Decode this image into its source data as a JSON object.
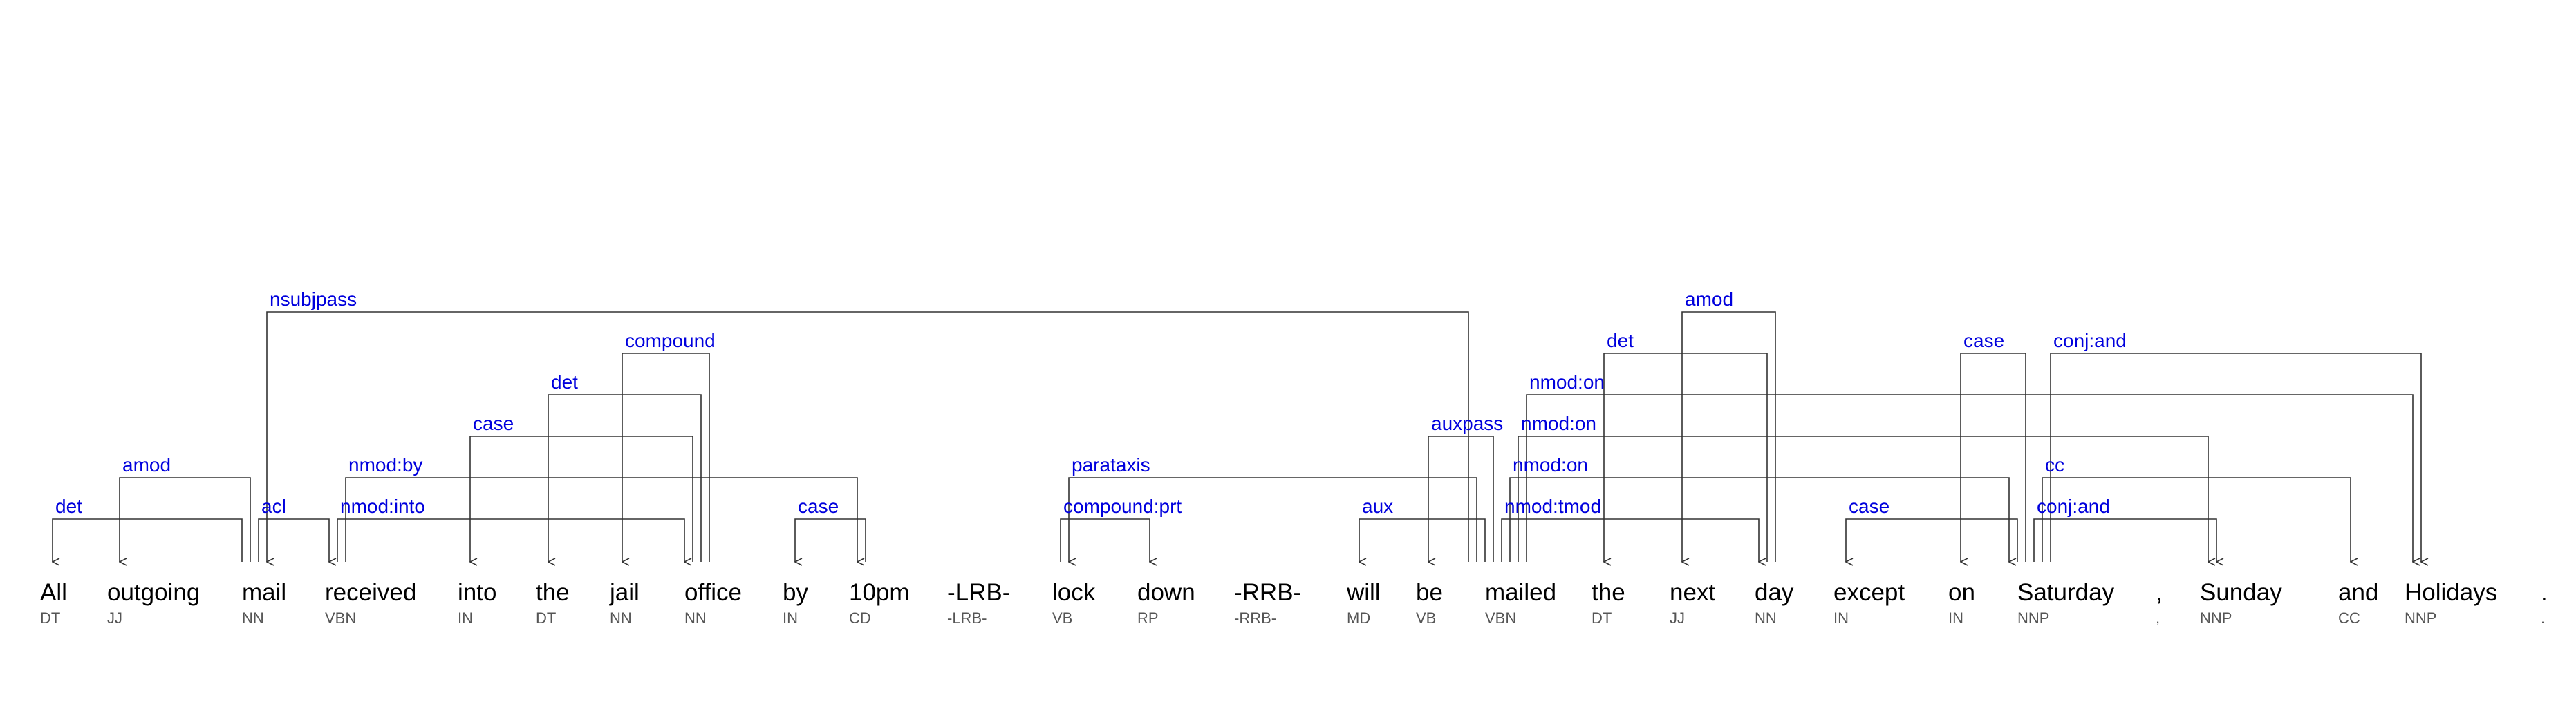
{
  "colors": {
    "label": "#0000dd",
    "line": "#333333",
    "token": "#000000",
    "tag": "#555555"
  },
  "tokens": [
    {
      "word": "All",
      "tag": "DT"
    },
    {
      "word": "outgoing",
      "tag": "JJ"
    },
    {
      "word": "mail",
      "tag": "NN"
    },
    {
      "word": "received",
      "tag": "VBN"
    },
    {
      "word": "into",
      "tag": "IN"
    },
    {
      "word": "the",
      "tag": "DT"
    },
    {
      "word": "jail",
      "tag": "NN"
    },
    {
      "word": "office",
      "tag": "NN"
    },
    {
      "word": "by",
      "tag": "IN"
    },
    {
      "word": "10pm",
      "tag": "CD"
    },
    {
      "word": "-LRB-",
      "tag": "-LRB-"
    },
    {
      "word": "lock",
      "tag": "VB"
    },
    {
      "word": "down",
      "tag": "RP"
    },
    {
      "word": "-RRB-",
      "tag": "-RRB-"
    },
    {
      "word": "will",
      "tag": "MD"
    },
    {
      "word": "be",
      "tag": "VB"
    },
    {
      "word": "mailed",
      "tag": "VBN"
    },
    {
      "word": "the",
      "tag": "DT"
    },
    {
      "word": "next",
      "tag": "JJ"
    },
    {
      "word": "day",
      "tag": "NN"
    },
    {
      "word": "except",
      "tag": "IN"
    },
    {
      "word": "on",
      "tag": "IN"
    },
    {
      "word": "Saturday",
      "tag": "NNP"
    },
    {
      "word": ",",
      "tag": ","
    },
    {
      "word": "Sunday",
      "tag": "NNP"
    },
    {
      "word": "and",
      "tag": "CC"
    },
    {
      "word": "Holidays",
      "tag": "NNP"
    },
    {
      "word": ".",
      "tag": "."
    }
  ],
  "arcs": [
    {
      "label": "det",
      "head": 2,
      "dep": 0,
      "level": 1
    },
    {
      "label": "amod",
      "head": 2,
      "dep": 1,
      "level": 2
    },
    {
      "label": "acl",
      "head": 2,
      "dep": 3,
      "level": 1
    },
    {
      "label": "nsubjpass",
      "head": 16,
      "dep": 2,
      "level": 6
    },
    {
      "label": "nmod:into",
      "head": 3,
      "dep": 7,
      "level": 1
    },
    {
      "label": "nmod:by",
      "head": 3,
      "dep": 9,
      "level": 2
    },
    {
      "label": "case",
      "head": 7,
      "dep": 4,
      "level": 3
    },
    {
      "label": "det",
      "head": 7,
      "dep": 5,
      "level": 4
    },
    {
      "label": "compound",
      "head": 7,
      "dep": 6,
      "level": 5
    },
    {
      "label": "case",
      "head": 9,
      "dep": 8,
      "level": 1
    },
    {
      "label": "parataxis",
      "head": 16,
      "dep": 11,
      "level": 2
    },
    {
      "label": "compound:prt",
      "head": 11,
      "dep": 12,
      "level": 1
    },
    {
      "label": "aux",
      "head": 16,
      "dep": 14,
      "level": 1
    },
    {
      "label": "auxpass",
      "head": 16,
      "dep": 15,
      "level": 3
    },
    {
      "label": "nmod:tmod",
      "head": 16,
      "dep": 19,
      "level": 1
    },
    {
      "label": "nmod:on",
      "head": 16,
      "dep": 22,
      "level": 2
    },
    {
      "label": "nmod:on",
      "head": 16,
      "dep": 24,
      "level": 3
    },
    {
      "label": "nmod:on",
      "head": 16,
      "dep": 26,
      "level": 4
    },
    {
      "label": "det",
      "head": 19,
      "dep": 17,
      "level": 5
    },
    {
      "label": "amod",
      "head": 19,
      "dep": 18,
      "level": 6
    },
    {
      "label": "case",
      "head": 22,
      "dep": 20,
      "level": 1
    },
    {
      "label": "case",
      "head": 22,
      "dep": 21,
      "level": 5
    },
    {
      "label": "conj:and",
      "head": 22,
      "dep": 24,
      "level": 1
    },
    {
      "label": "cc",
      "head": 22,
      "dep": 25,
      "level": 2
    },
    {
      "label": "conj:and",
      "head": 22,
      "dep": 26,
      "level": 5
    }
  ]
}
